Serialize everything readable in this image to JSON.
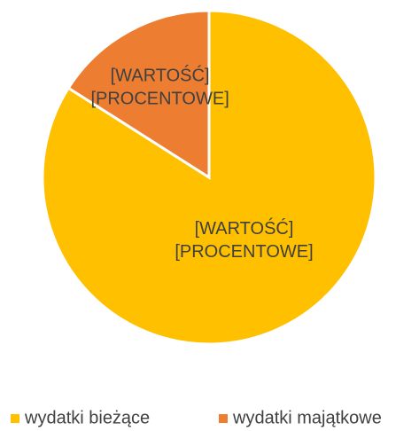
{
  "chart_data": {
    "type": "pie",
    "categories": [
      "wydatki bieżące",
      "wydatki majątkowe"
    ],
    "values": [
      84,
      16
    ],
    "value_labels": [
      [
        "[WARTOŚĆ]",
        "[PROCENTOWE]"
      ],
      [
        "[WARTOŚĆ]",
        "[PROCENTOWE]"
      ]
    ],
    "colors": [
      "#FFC000",
      "#ED7D31"
    ],
    "legend": "bottom"
  }
}
